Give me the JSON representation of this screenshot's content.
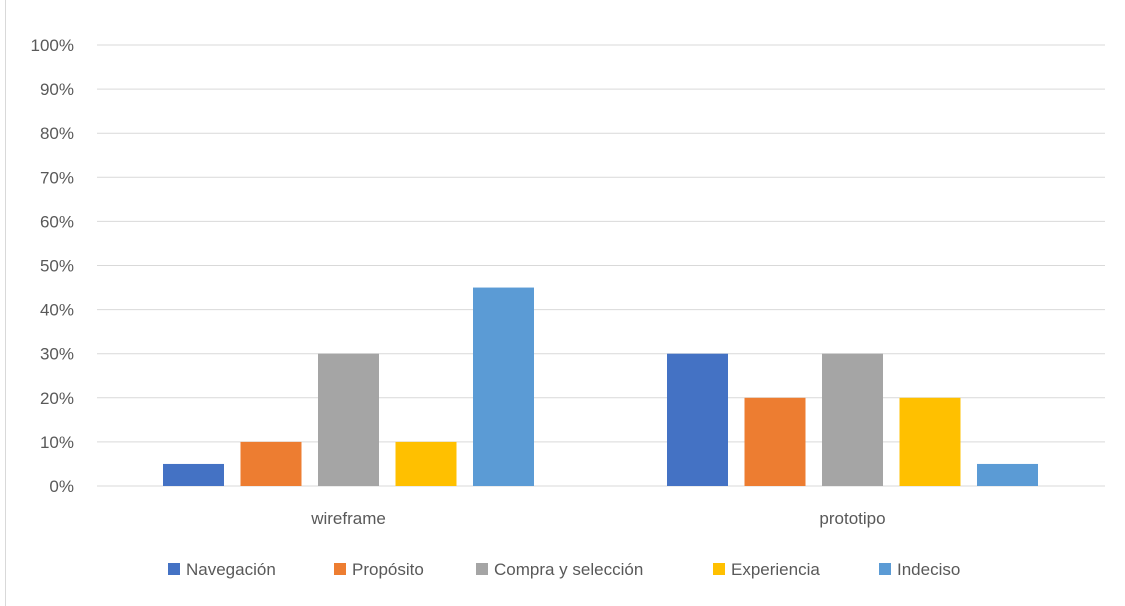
{
  "chart_data": {
    "type": "bar",
    "categories": [
      "wireframe",
      "prototipo"
    ],
    "series": [
      {
        "name": "Navegación",
        "values": [
          5,
          30
        ],
        "color": "#4472C4"
      },
      {
        "name": "Propósito",
        "values": [
          10,
          20
        ],
        "color": "#ED7D31"
      },
      {
        "name": "Compra y selección",
        "values": [
          30,
          30
        ],
        "color": "#A5A5A5"
      },
      {
        "name": "Experiencia",
        "values": [
          10,
          20
        ],
        "color": "#FFC000"
      },
      {
        "name": "Indeciso",
        "values": [
          45,
          5
        ],
        "color": "#5B9BD5"
      }
    ],
    "yticks": [
      "0%",
      "10%",
      "20%",
      "30%",
      "40%",
      "50%",
      "60%",
      "70%",
      "80%",
      "90%",
      "100%"
    ],
    "ylim": [
      0,
      100
    ],
    "grid": true,
    "legend_position": "bottom",
    "gridline_color": "#d9d9d9"
  }
}
